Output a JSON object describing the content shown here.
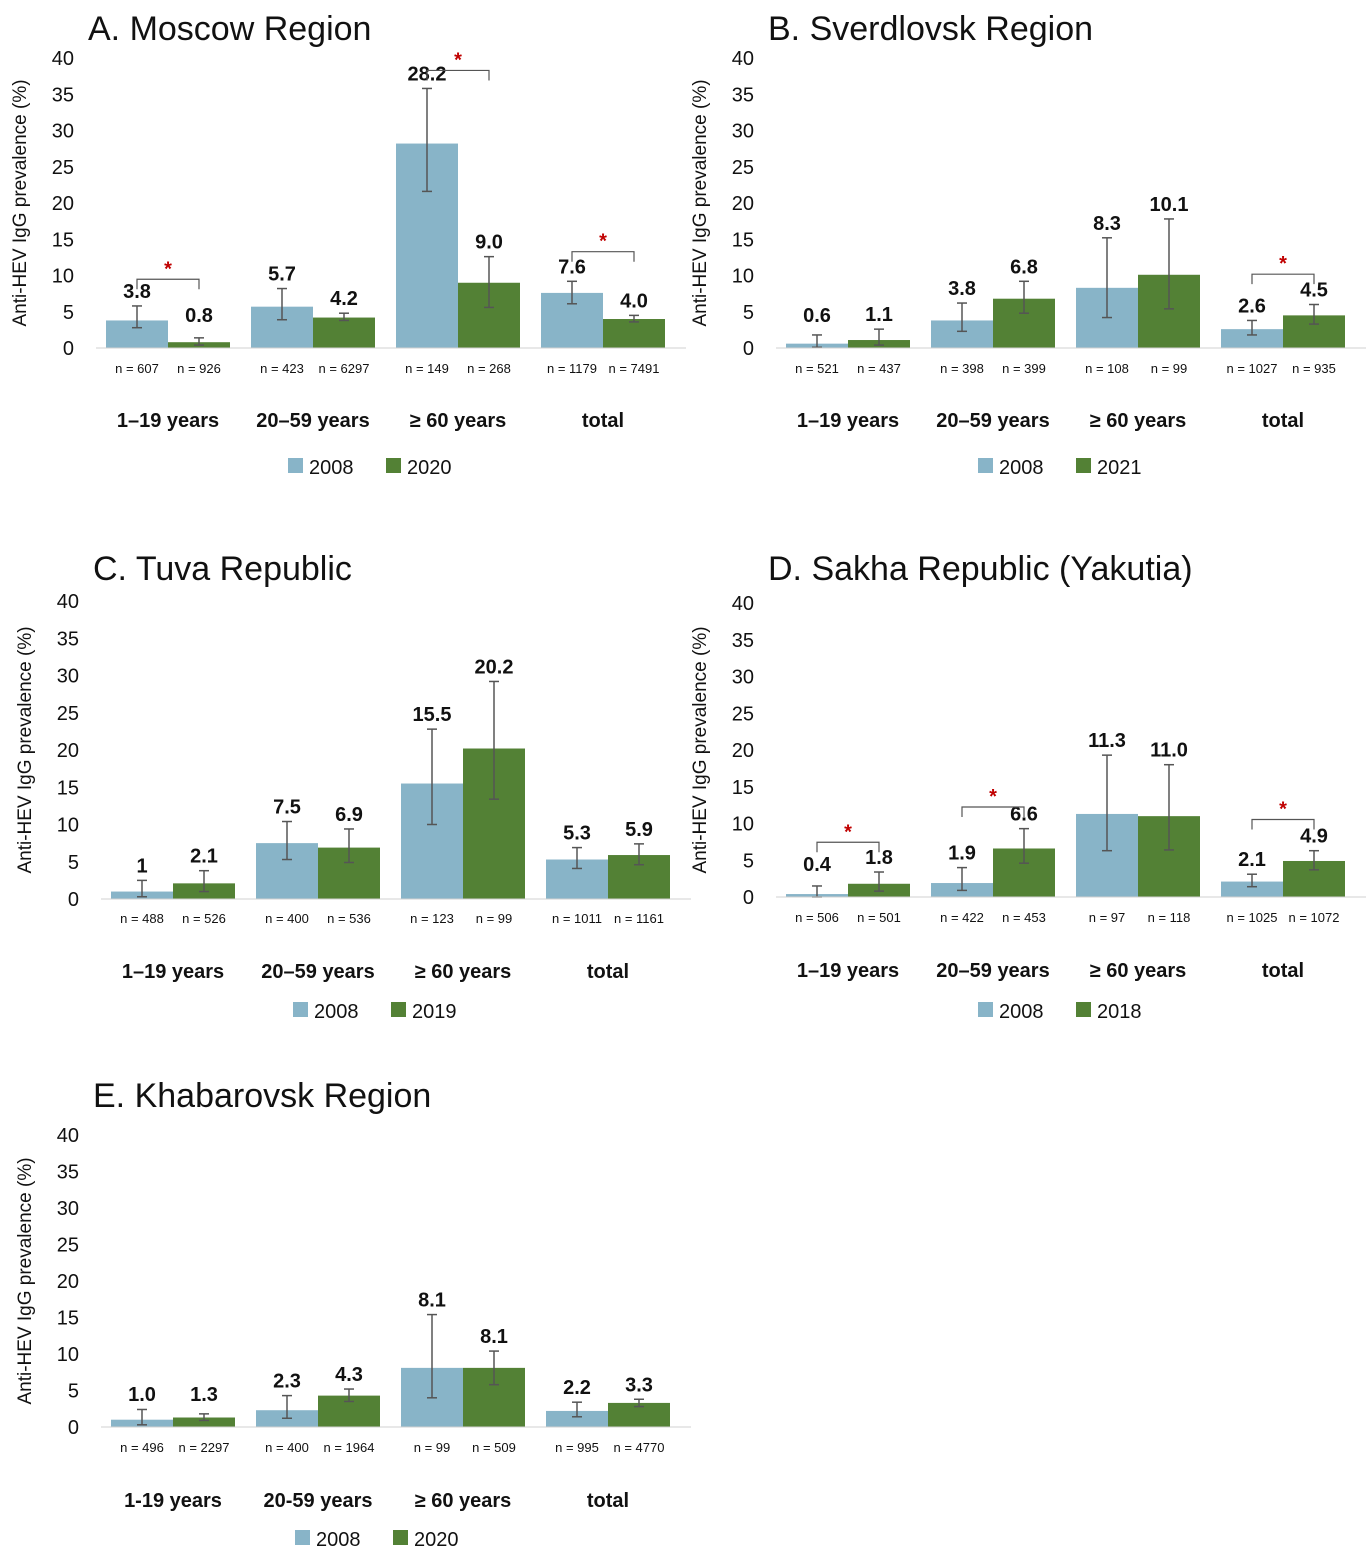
{
  "ylabel": "Anti-HEV IgG prevalence (%)",
  "colors": {
    "series_a": "#88b4c8",
    "series_b": "#538135",
    "star": "#c00000",
    "errorbar": "#555555"
  },
  "chart_data": [
    {
      "type": "bar",
      "title": "A.  Moscow Region",
      "yticks": [
        "0",
        "5",
        "10",
        "15",
        "20",
        "25",
        "30",
        "35",
        "40"
      ],
      "ylim": [
        0,
        40
      ],
      "categories": [
        "1–19 years",
        "20–59 years",
        "≥ 60 years",
        "total"
      ],
      "series": [
        {
          "name": "2008",
          "values": [
            3.8,
            5.7,
            28.2,
            7.6
          ],
          "labels": [
            "3.8",
            "5.7",
            "28.2",
            "7.6"
          ],
          "err_low": [
            2.8,
            3.9,
            21.6,
            6.1
          ],
          "err_high": [
            5.8,
            8.2,
            35.8,
            9.2
          ],
          "n": [
            "n = 607",
            "n = 423",
            "n = 149",
            "n = 1179"
          ]
        },
        {
          "name": "2020",
          "values": [
            0.8,
            4.2,
            9.0,
            4.0
          ],
          "labels": [
            "0.8",
            "4.2",
            "9.0",
            "4.0"
          ],
          "err_low": [
            0.4,
            3.8,
            5.6,
            3.6
          ],
          "err_high": [
            1.4,
            4.8,
            12.6,
            4.5
          ],
          "n": [
            "n = 926",
            "n = 6297",
            "n = 268",
            "n = 7491"
          ]
        }
      ],
      "significance": [
        0,
        2,
        3
      ],
      "star": "*"
    },
    {
      "type": "bar",
      "title": "B.  Sverdlovsk Region",
      "yticks": [
        "0",
        "5",
        "10",
        "15",
        "20",
        "25",
        "30",
        "35",
        "40"
      ],
      "ylim": [
        0,
        40
      ],
      "categories": [
        "1–19 years",
        "20–59 years",
        "≥ 60 years",
        "total"
      ],
      "series": [
        {
          "name": "2008",
          "values": [
            0.6,
            3.8,
            8.3,
            2.6
          ],
          "labels": [
            "0.6",
            "3.8",
            "8.3",
            "2.6"
          ],
          "err_low": [
            0.1,
            2.3,
            4.2,
            1.8
          ],
          "err_high": [
            1.8,
            6.2,
            15.2,
            3.8
          ],
          "n": [
            "n = 521",
            "n = 398",
            "n = 108",
            "n = 1027"
          ]
        },
        {
          "name": "2021",
          "values": [
            1.1,
            6.8,
            10.1,
            4.5
          ],
          "labels": [
            "1.1",
            "6.8",
            "10.1",
            "4.5"
          ],
          "err_low": [
            0.4,
            4.8,
            5.4,
            3.3
          ],
          "err_high": [
            2.6,
            9.2,
            17.8,
            6.0
          ],
          "n": [
            "n = 437",
            "n = 399",
            "n = 99",
            "n = 935"
          ]
        }
      ],
      "significance": [
        3
      ],
      "star": "*"
    },
    {
      "type": "bar",
      "title": "C.  Tuva Republic",
      "yticks": [
        "0",
        "5",
        "10",
        "15",
        "20",
        "25",
        "30",
        "35",
        "40"
      ],
      "ylim": [
        0,
        40
      ],
      "categories": [
        "1–19 years",
        "20–59 years",
        "≥ 60 years",
        "total"
      ],
      "series": [
        {
          "name": "2008",
          "values": [
            1.0,
            7.5,
            15.5,
            5.3
          ],
          "labels": [
            "1",
            "7.5",
            "15.5",
            "5.3"
          ],
          "err_low": [
            0.3,
            5.3,
            10.0,
            4.1
          ],
          "err_high": [
            2.5,
            10.4,
            22.8,
            6.9
          ],
          "n": [
            "n = 488",
            "n = 400",
            "n = 123",
            "n = 1011"
          ]
        },
        {
          "name": "2019",
          "values": [
            2.1,
            6.9,
            20.2,
            5.9
          ],
          "labels": [
            "2.1",
            "6.9",
            "20.2",
            "5.9"
          ],
          "err_low": [
            1.0,
            4.9,
            13.4,
            4.6
          ],
          "err_high": [
            3.8,
            9.4,
            29.2,
            7.4
          ],
          "n": [
            "n = 526",
            "n = 536",
            "n = 99",
            "n = 1161"
          ]
        }
      ],
      "significance": [],
      "star": "*"
    },
    {
      "type": "bar",
      "title": "D.  Sakha Republic (Yakutia)",
      "yticks": [
        "0",
        "5",
        "10",
        "15",
        "20",
        "25",
        "30",
        "35",
        "40"
      ],
      "ylim": [
        0,
        40
      ],
      "categories": [
        "1–19 years",
        "20–59 years",
        "≥ 60 years",
        "total"
      ],
      "series": [
        {
          "name": "2008",
          "values": [
            0.4,
            1.9,
            11.3,
            2.1
          ],
          "labels": [
            "0.4",
            "1.9",
            "11.3",
            "2.1"
          ],
          "err_low": [
            0.0,
            0.9,
            6.3,
            1.4
          ],
          "err_high": [
            1.5,
            4.0,
            19.3,
            3.1
          ],
          "n": [
            "n = 506",
            "n = 422",
            "n = 97",
            "n = 1025"
          ]
        },
        {
          "name": "2018",
          "values": [
            1.8,
            6.6,
            11.0,
            4.9
          ],
          "labels": [
            "1.8",
            "6.6",
            "11.0",
            "4.9"
          ],
          "err_low": [
            0.8,
            4.6,
            6.4,
            3.7
          ],
          "err_high": [
            3.4,
            9.3,
            18.0,
            6.3
          ],
          "n": [
            "n = 501",
            "n = 453",
            "n = 118",
            "n = 1072"
          ]
        }
      ],
      "significance": [
        0,
        1,
        3
      ],
      "star": "*"
    },
    {
      "type": "bar",
      "title": "E.  Khabarovsk Region",
      "yticks": [
        "0",
        "5",
        "10",
        "15",
        "20",
        "25",
        "30",
        "35",
        "40"
      ],
      "ylim": [
        0,
        40
      ],
      "categories": [
        "1-19 years",
        "20-59 years",
        "≥ 60 years",
        "total"
      ],
      "series": [
        {
          "name": "2008",
          "values": [
            1.0,
            2.3,
            8.1,
            2.2
          ],
          "labels": [
            "1.0",
            "2.3",
            "8.1",
            "2.2"
          ],
          "err_low": [
            0.3,
            1.2,
            4.0,
            1.4
          ],
          "err_high": [
            2.4,
            4.3,
            15.4,
            3.4
          ],
          "n": [
            "n = 496",
            "n = 400",
            "n = 99",
            "n = 995"
          ]
        },
        {
          "name": "2020",
          "values": [
            1.3,
            4.3,
            8.1,
            3.3
          ],
          "labels": [
            "1.3",
            "4.3",
            "8.1",
            "3.3"
          ],
          "err_low": [
            0.9,
            3.5,
            5.8,
            2.8
          ],
          "err_high": [
            1.8,
            5.2,
            10.4,
            3.8
          ],
          "n": [
            "n = 2297",
            "n = 1964",
            "n = 509",
            "n = 4770"
          ]
        }
      ],
      "significance": [],
      "star": "*"
    }
  ]
}
